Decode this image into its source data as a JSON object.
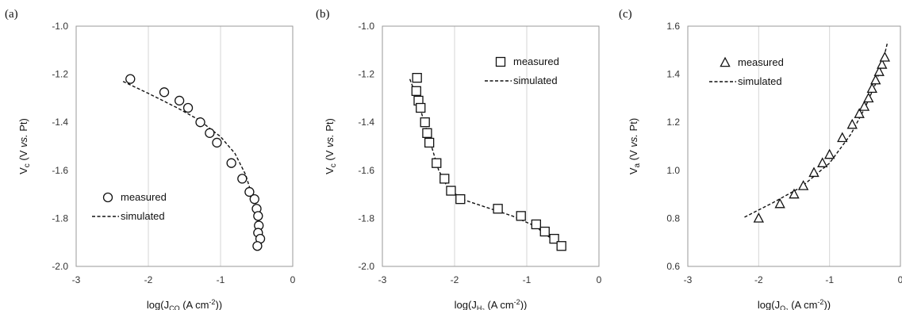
{
  "chart_data": [
    {
      "type": "scatter",
      "panel_label": "(a)",
      "xlabel": {
        "base": "log(J",
        "sub": "CO",
        "tail": " (A cm",
        "sup": "-2",
        "end": "))"
      },
      "ylabel": {
        "base": "V",
        "sub": "c",
        "tail": " (V ",
        "ital": "vs.",
        "end": " Pt)"
      },
      "xlim": [
        -3,
        0
      ],
      "ylim": [
        -2.0,
        -1.0
      ],
      "xticks": [
        "-3",
        "-2",
        "-1",
        "0"
      ],
      "yticks": [
        "-2.0",
        "-1.8",
        "-1.6",
        "-1.4",
        "-1.2",
        "-1.0"
      ],
      "grid": "vertical",
      "legend": {
        "placement": "bottom-left",
        "measured": "measured",
        "simulated": "simulated"
      },
      "marker": "circle",
      "measured": [
        [
          -2.25,
          -1.22
        ],
        [
          -1.78,
          -1.275
        ],
        [
          -1.57,
          -1.31
        ],
        [
          -1.45,
          -1.34
        ],
        [
          -1.28,
          -1.4
        ],
        [
          -1.15,
          -1.445
        ],
        [
          -1.05,
          -1.485
        ],
        [
          -0.85,
          -1.57
        ],
        [
          -0.7,
          -1.635
        ],
        [
          -0.6,
          -1.69
        ],
        [
          -0.53,
          -1.72
        ],
        [
          -0.5,
          -1.76
        ],
        [
          -0.48,
          -1.79
        ],
        [
          -0.47,
          -1.83
        ],
        [
          -0.48,
          -1.86
        ],
        [
          -0.45,
          -1.885
        ],
        [
          -0.49,
          -1.915
        ]
      ],
      "simulated": [
        [
          -2.35,
          -1.23
        ],
        [
          -2.0,
          -1.28
        ],
        [
          -1.6,
          -1.34
        ],
        [
          -1.3,
          -1.39
        ],
        [
          -1.0,
          -1.46
        ],
        [
          -0.8,
          -1.53
        ],
        [
          -0.65,
          -1.62
        ],
        [
          -0.55,
          -1.72
        ],
        [
          -0.5,
          -1.82
        ],
        [
          -0.48,
          -1.92
        ]
      ]
    },
    {
      "type": "scatter",
      "panel_label": "(b)",
      "xlabel": {
        "base": "log(J",
        "sub": "H₂",
        "tail": " (A cm",
        "sup": "-2",
        "end": "))"
      },
      "ylabel": {
        "base": "V",
        "sub": "c",
        "tail": " (V ",
        "ital": "vs.",
        "end": " Pt)"
      },
      "xlim": [
        -3,
        0
      ],
      "ylim": [
        -2.0,
        -1.0
      ],
      "xticks": [
        "-3",
        "-2",
        "-1",
        "0"
      ],
      "yticks": [
        "-2.0",
        "-1.8",
        "-1.6",
        "-1.4",
        "-1.2",
        "-1.0"
      ],
      "grid": "vertical",
      "legend": {
        "placement": "top-right",
        "measured": "measured",
        "simulated": "simulated"
      },
      "marker": "square",
      "measured": [
        [
          -2.52,
          -1.215
        ],
        [
          -2.53,
          -1.27
        ],
        [
          -2.5,
          -1.31
        ],
        [
          -2.47,
          -1.34
        ],
        [
          -2.41,
          -1.4
        ],
        [
          -2.38,
          -1.445
        ],
        [
          -2.35,
          -1.485
        ],
        [
          -2.25,
          -1.57
        ],
        [
          -2.14,
          -1.635
        ],
        [
          -2.05,
          -1.685
        ],
        [
          -1.92,
          -1.72
        ],
        [
          -1.4,
          -1.76
        ],
        [
          -1.08,
          -1.79
        ],
        [
          -0.87,
          -1.825
        ],
        [
          -0.75,
          -1.855
        ],
        [
          -0.62,
          -1.885
        ],
        [
          -0.52,
          -1.915
        ]
      ],
      "simulated": [
        [
          -2.62,
          -1.22
        ],
        [
          -2.52,
          -1.3
        ],
        [
          -2.42,
          -1.4
        ],
        [
          -2.32,
          -1.5
        ],
        [
          -2.22,
          -1.6
        ],
        [
          -2.1,
          -1.67
        ],
        [
          -1.9,
          -1.72
        ],
        [
          -1.6,
          -1.75
        ],
        [
          -1.2,
          -1.79
        ],
        [
          -0.9,
          -1.83
        ],
        [
          -0.5,
          -1.92
        ]
      ]
    },
    {
      "type": "scatter",
      "panel_label": "(c)",
      "xlabel": {
        "base": "log(J",
        "sub": "O₂",
        "tail": " (A cm",
        "sup": "-2",
        "end": "))"
      },
      "ylabel": {
        "base": "V",
        "sub": "a",
        "tail": " (V ",
        "ital": "vs.",
        "end": " Pt)"
      },
      "xlim": [
        -3,
        0
      ],
      "ylim": [
        0.6,
        1.6
      ],
      "xticks": [
        "-3",
        "-2",
        "-1",
        "0"
      ],
      "yticks": [
        "0.6",
        "0.8",
        "1.0",
        "1.2",
        "1.4",
        "1.6"
      ],
      "grid": "vertical",
      "legend": {
        "placement": "top-left",
        "measured": "measured",
        "simulated": "simulated"
      },
      "marker": "triangle",
      "measured": [
        [
          -2.0,
          0.8
        ],
        [
          -1.7,
          0.86
        ],
        [
          -1.5,
          0.9
        ],
        [
          -1.37,
          0.935
        ],
        [
          -1.22,
          0.99
        ],
        [
          -1.1,
          1.03
        ],
        [
          -1.0,
          1.065
        ],
        [
          -0.82,
          1.135
        ],
        [
          -0.68,
          1.19
        ],
        [
          -0.58,
          1.235
        ],
        [
          -0.51,
          1.265
        ],
        [
          -0.45,
          1.3
        ],
        [
          -0.4,
          1.34
        ],
        [
          -0.35,
          1.375
        ],
        [
          -0.3,
          1.41
        ],
        [
          -0.26,
          1.44
        ],
        [
          -0.22,
          1.47
        ]
      ],
      "simulated": [
        [
          -2.2,
          0.805
        ],
        [
          -1.8,
          0.865
        ],
        [
          -1.4,
          0.93
        ],
        [
          -1.0,
          1.03
        ],
        [
          -0.7,
          1.15
        ],
        [
          -0.5,
          1.26
        ],
        [
          -0.35,
          1.36
        ],
        [
          -0.25,
          1.45
        ],
        [
          -0.18,
          1.535
        ]
      ]
    }
  ]
}
